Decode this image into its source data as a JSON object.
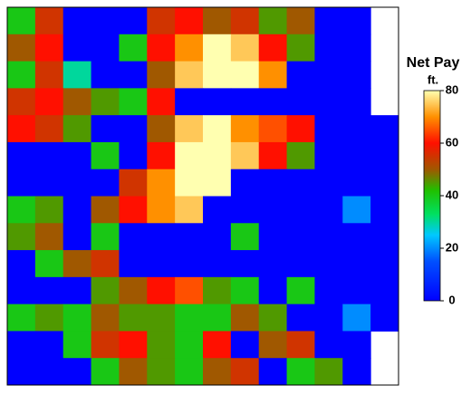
{
  "chart_data": {
    "type": "heatmap",
    "title": "Net Pay",
    "colorbar_label": "ft.",
    "clim": [
      0,
      80
    ],
    "cticks": [
      0,
      20,
      40,
      60,
      80
    ],
    "colorscale": [
      [
        0,
        "#0000ff"
      ],
      [
        15,
        "#0050ff"
      ],
      [
        25,
        "#00c8ff"
      ],
      [
        33,
        "#00e060"
      ],
      [
        42,
        "#20c000"
      ],
      [
        50,
        "#a05800"
      ],
      [
        60,
        "#ff1000"
      ],
      [
        70,
        "#ff9000"
      ],
      [
        80,
        "#ffffb0"
      ]
    ],
    "z": [
      [
        40,
        55,
        0,
        0,
        0,
        55,
        60,
        50,
        55,
        45,
        50,
        0,
        0,
        null
      ],
      [
        50,
        60,
        0,
        0,
        40,
        60,
        70,
        80,
        75,
        60,
        45,
        0,
        0,
        null
      ],
      [
        40,
        55,
        30,
        0,
        0,
        50,
        75,
        80,
        80,
        70,
        0,
        0,
        0,
        null
      ],
      [
        55,
        60,
        50,
        45,
        40,
        60,
        0,
        0,
        0,
        0,
        0,
        0,
        0,
        null
      ],
      [
        60,
        55,
        45,
        0,
        0,
        50,
        75,
        80,
        70,
        65,
        60,
        0,
        0,
        0
      ],
      [
        0,
        0,
        0,
        40,
        0,
        60,
        80,
        80,
        75,
        60,
        45,
        0,
        0,
        0
      ],
      [
        0,
        0,
        0,
        0,
        55,
        70,
        80,
        80,
        0,
        0,
        0,
        0,
        0,
        0
      ],
      [
        40,
        45,
        0,
        50,
        60,
        70,
        75,
        0,
        0,
        0,
        0,
        0,
        20,
        0
      ],
      [
        45,
        50,
        0,
        40,
        0,
        0,
        0,
        0,
        40,
        0,
        0,
        0,
        0,
        0
      ],
      [
        0,
        40,
        50,
        55,
        0,
        0,
        0,
        0,
        0,
        0,
        0,
        0,
        0,
        0
      ],
      [
        0,
        0,
        0,
        45,
        50,
        60,
        65,
        45,
        40,
        0,
        40,
        0,
        0,
        0
      ],
      [
        40,
        45,
        40,
        50,
        45,
        45,
        40,
        40,
        50,
        45,
        0,
        0,
        20,
        0
      ],
      [
        0,
        0,
        40,
        55,
        60,
        45,
        40,
        60,
        0,
        50,
        55,
        0,
        0,
        null
      ],
      [
        0,
        0,
        0,
        40,
        50,
        45,
        40,
        50,
        55,
        0,
        40,
        45,
        0,
        null
      ]
    ]
  }
}
